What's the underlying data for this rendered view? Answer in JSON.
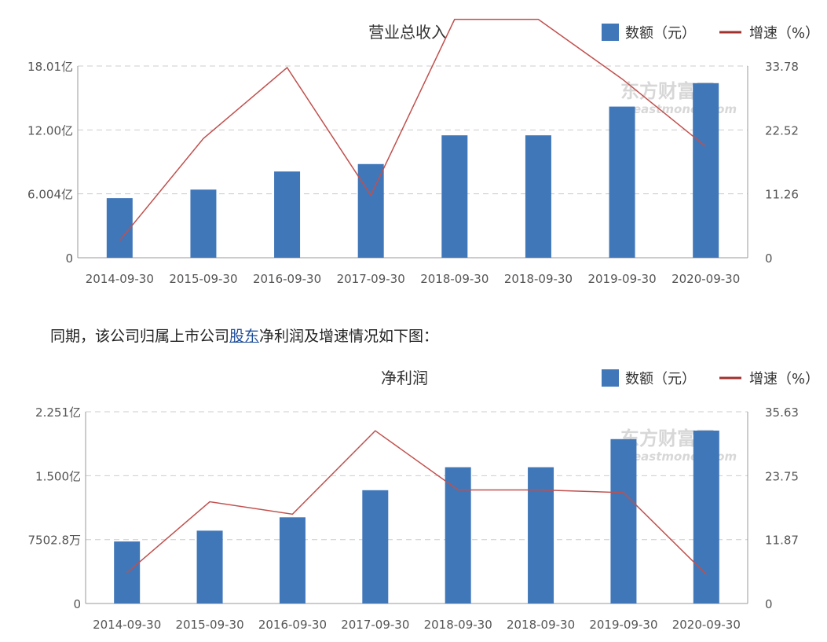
{
  "caption": {
    "before": "同期，该公司归属上市公司",
    "link": "股东",
    "after": "净利润及增速情况如下图："
  },
  "legend": {
    "bar_label": "数额（元）",
    "line_label": "增速（%）"
  },
  "watermark": {
    "cn": "东方财富网",
    "en": "eastmoney.com"
  },
  "colors": {
    "bar": "#4077b9",
    "line": "#c0504d",
    "grid": "#cccccc",
    "axis": "#999999"
  },
  "chart_data": [
    {
      "type": "bar",
      "title": "营业总收入",
      "categories": [
        "2014-09-30",
        "2015-09-30",
        "2016-09-30",
        "2017-09-30",
        "2018-09-30",
        "2018-09-30",
        "2019-09-30",
        "2020-09-30"
      ],
      "series": [
        {
          "name": "数额（元）",
          "type": "bar",
          "axis": "left",
          "values": [
            5.6,
            6.4,
            8.1,
            8.8,
            11.5,
            11.5,
            14.2,
            16.4
          ]
        },
        {
          "name": "增速（%）",
          "type": "line",
          "axis": "right",
          "values": [
            3.0,
            21.0,
            33.5,
            11.0,
            42.0,
            42.0,
            31.5,
            19.6
          ]
        }
      ],
      "y_left": {
        "ticks": [
          0,
          6.004,
          12.0,
          18.01
        ],
        "tick_labels": [
          "0",
          "6.004亿",
          "12.00亿",
          "18.01亿"
        ],
        "range": [
          0,
          18.01
        ],
        "unit": "亿"
      },
      "y_right": {
        "ticks": [
          0,
          11.26,
          22.52,
          33.78
        ],
        "tick_labels": [
          "0",
          "11.26",
          "22.52",
          "33.78"
        ],
        "range": [
          0,
          33.78
        ]
      },
      "grid": true,
      "legend_position": "top-right"
    },
    {
      "type": "bar",
      "title": "净利润",
      "categories": [
        "2014-09-30",
        "2015-09-30",
        "2016-09-30",
        "2017-09-30",
        "2018-09-30",
        "2018-09-30",
        "2019-09-30",
        "2020-09-30"
      ],
      "series": [
        {
          "name": "数额（元）",
          "type": "bar",
          "axis": "left",
          "values": [
            0.728,
            0.855,
            1.012,
            1.33,
            1.6,
            1.6,
            1.93,
            2.03
          ]
        },
        {
          "name": "增速（%）",
          "type": "line",
          "axis": "right",
          "values": [
            5.7,
            18.9,
            16.6,
            32.1,
            21.1,
            21.1,
            20.6,
            5.4
          ]
        }
      ],
      "y_left": {
        "ticks": [
          0,
          0.750028,
          1.5,
          2.251
        ],
        "tick_labels": [
          "0",
          "7502.8万",
          "1.500亿",
          "2.251亿"
        ],
        "range": [
          0,
          2.251
        ],
        "unit": "亿"
      },
      "y_right": {
        "ticks": [
          0,
          11.87,
          23.75,
          35.63
        ],
        "tick_labels": [
          "0",
          "11.87",
          "23.75",
          "35.63"
        ],
        "range": [
          0,
          35.63
        ]
      },
      "grid": true,
      "legend_position": "top-right"
    }
  ]
}
